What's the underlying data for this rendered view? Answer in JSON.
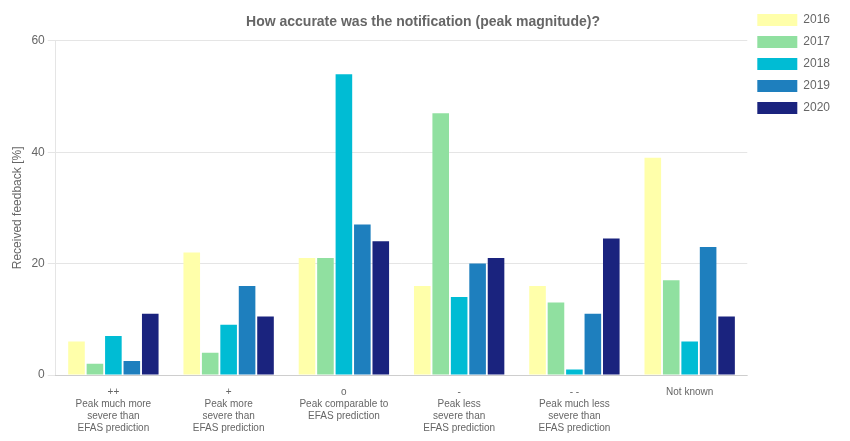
{
  "chart_data": {
    "type": "bar",
    "title": "How accurate was the notification (peak magnitude)?",
    "ylabel": "Received feedback [%]",
    "categories": [
      "++\nPeak much more\nsevere than\nEFAS prediction",
      "+\nPeak more\nsevere than\nEFAS prediction",
      "o\nPeak comparable to\nEFAS prediction",
      "-\nPeak less\nsevere than\nEFAS prediction",
      "- -\nPeak much less\nsevere than\nEFAS prediction",
      "Not known"
    ],
    "series": [
      {
        "name": "2016",
        "color": "#ffffaa",
        "values": [
          6,
          22,
          21,
          16,
          16,
          39
        ]
      },
      {
        "name": "2017",
        "color": "#90e0a0",
        "values": [
          2,
          4,
          21,
          47,
          13,
          17
        ]
      },
      {
        "name": "2018",
        "color": "#00bcd4",
        "values": [
          7,
          9,
          54,
          14,
          1,
          6
        ]
      },
      {
        "name": "2019",
        "color": "#1e7fbe",
        "values": [
          2.5,
          16,
          27,
          20,
          11,
          23
        ]
      },
      {
        "name": "2020",
        "color": "#1a237e",
        "values": [
          11,
          10.5,
          24,
          21,
          24.5,
          10.5
        ]
      }
    ],
    "ylim": [
      0,
      60
    ],
    "yticks": [
      0,
      20,
      40,
      60
    ],
    "grid": true,
    "legend": "upper right"
  }
}
